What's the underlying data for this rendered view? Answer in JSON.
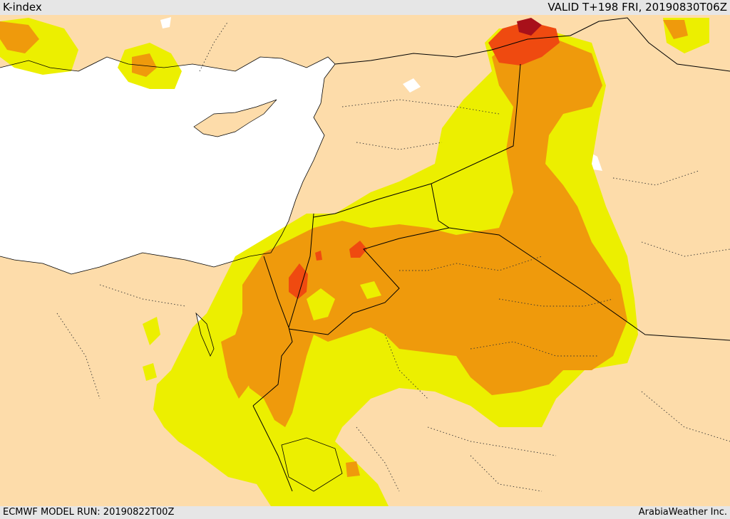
{
  "header": {
    "title": "K-index",
    "valid_label": "VALID T+198 FRI, 20190830T06Z"
  },
  "footer": {
    "model_run": "ECMWF MODEL RUN: 20190822T00Z",
    "credit": "ArabiaWeather Inc."
  },
  "colors": {
    "land": "#fddcaa",
    "sea": "#ffffff",
    "level_1": "#ecef00",
    "level_2": "#ef9a0c",
    "level_3": "#ef4a10",
    "level_4": "#a8101a"
  }
}
